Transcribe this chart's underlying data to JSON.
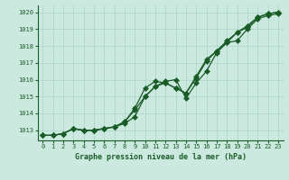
{
  "x": [
    0,
    1,
    2,
    3,
    4,
    5,
    6,
    7,
    8,
    9,
    10,
    11,
    12,
    13,
    14,
    15,
    16,
    17,
    18,
    19,
    20,
    21,
    22,
    23
  ],
  "line1": [
    1012.7,
    1012.7,
    1012.8,
    1013.1,
    1013.0,
    1013.0,
    1013.1,
    1013.2,
    1013.4,
    1013.8,
    1015.0,
    1015.6,
    1015.8,
    1015.5,
    1015.2,
    1016.1,
    1017.1,
    1017.7,
    1018.2,
    1018.3,
    1019.0,
    1019.6,
    1019.8,
    1019.9
  ],
  "line2": [
    1012.7,
    1012.7,
    1012.8,
    1013.1,
    1013.0,
    1013.0,
    1013.1,
    1013.2,
    1013.5,
    1014.2,
    1015.0,
    1015.6,
    1015.9,
    1016.0,
    1014.9,
    1015.8,
    1016.5,
    1017.6,
    1018.2,
    1018.8,
    1019.1,
    1019.7,
    1019.9,
    1020.0
  ],
  "line3": [
    1012.7,
    1012.7,
    1012.8,
    1013.1,
    1013.0,
    1013.0,
    1013.1,
    1013.2,
    1013.5,
    1014.3,
    1015.5,
    1015.9,
    1015.8,
    1015.5,
    1015.2,
    1016.2,
    1017.2,
    1017.7,
    1018.3,
    1018.8,
    1019.2,
    1019.7,
    1019.9,
    1020.0
  ],
  "bg_color": "#cce9e0",
  "grid_color": "#aad4c8",
  "line_color": "#1a5c28",
  "xlabel": "Graphe pression niveau de la mer (hPa)",
  "xlabel_color": "#1a5c28",
  "tick_color": "#1a5c28",
  "ylim": [
    1012.4,
    1020.4
  ],
  "xlim": [
    -0.5,
    23.5
  ],
  "yticks": [
    1013,
    1014,
    1015,
    1016,
    1017,
    1018,
    1019,
    1020
  ],
  "xticks": [
    0,
    1,
    2,
    3,
    4,
    5,
    6,
    7,
    8,
    9,
    10,
    11,
    12,
    13,
    14,
    15,
    16,
    17,
    18,
    19,
    20,
    21,
    22,
    23
  ]
}
